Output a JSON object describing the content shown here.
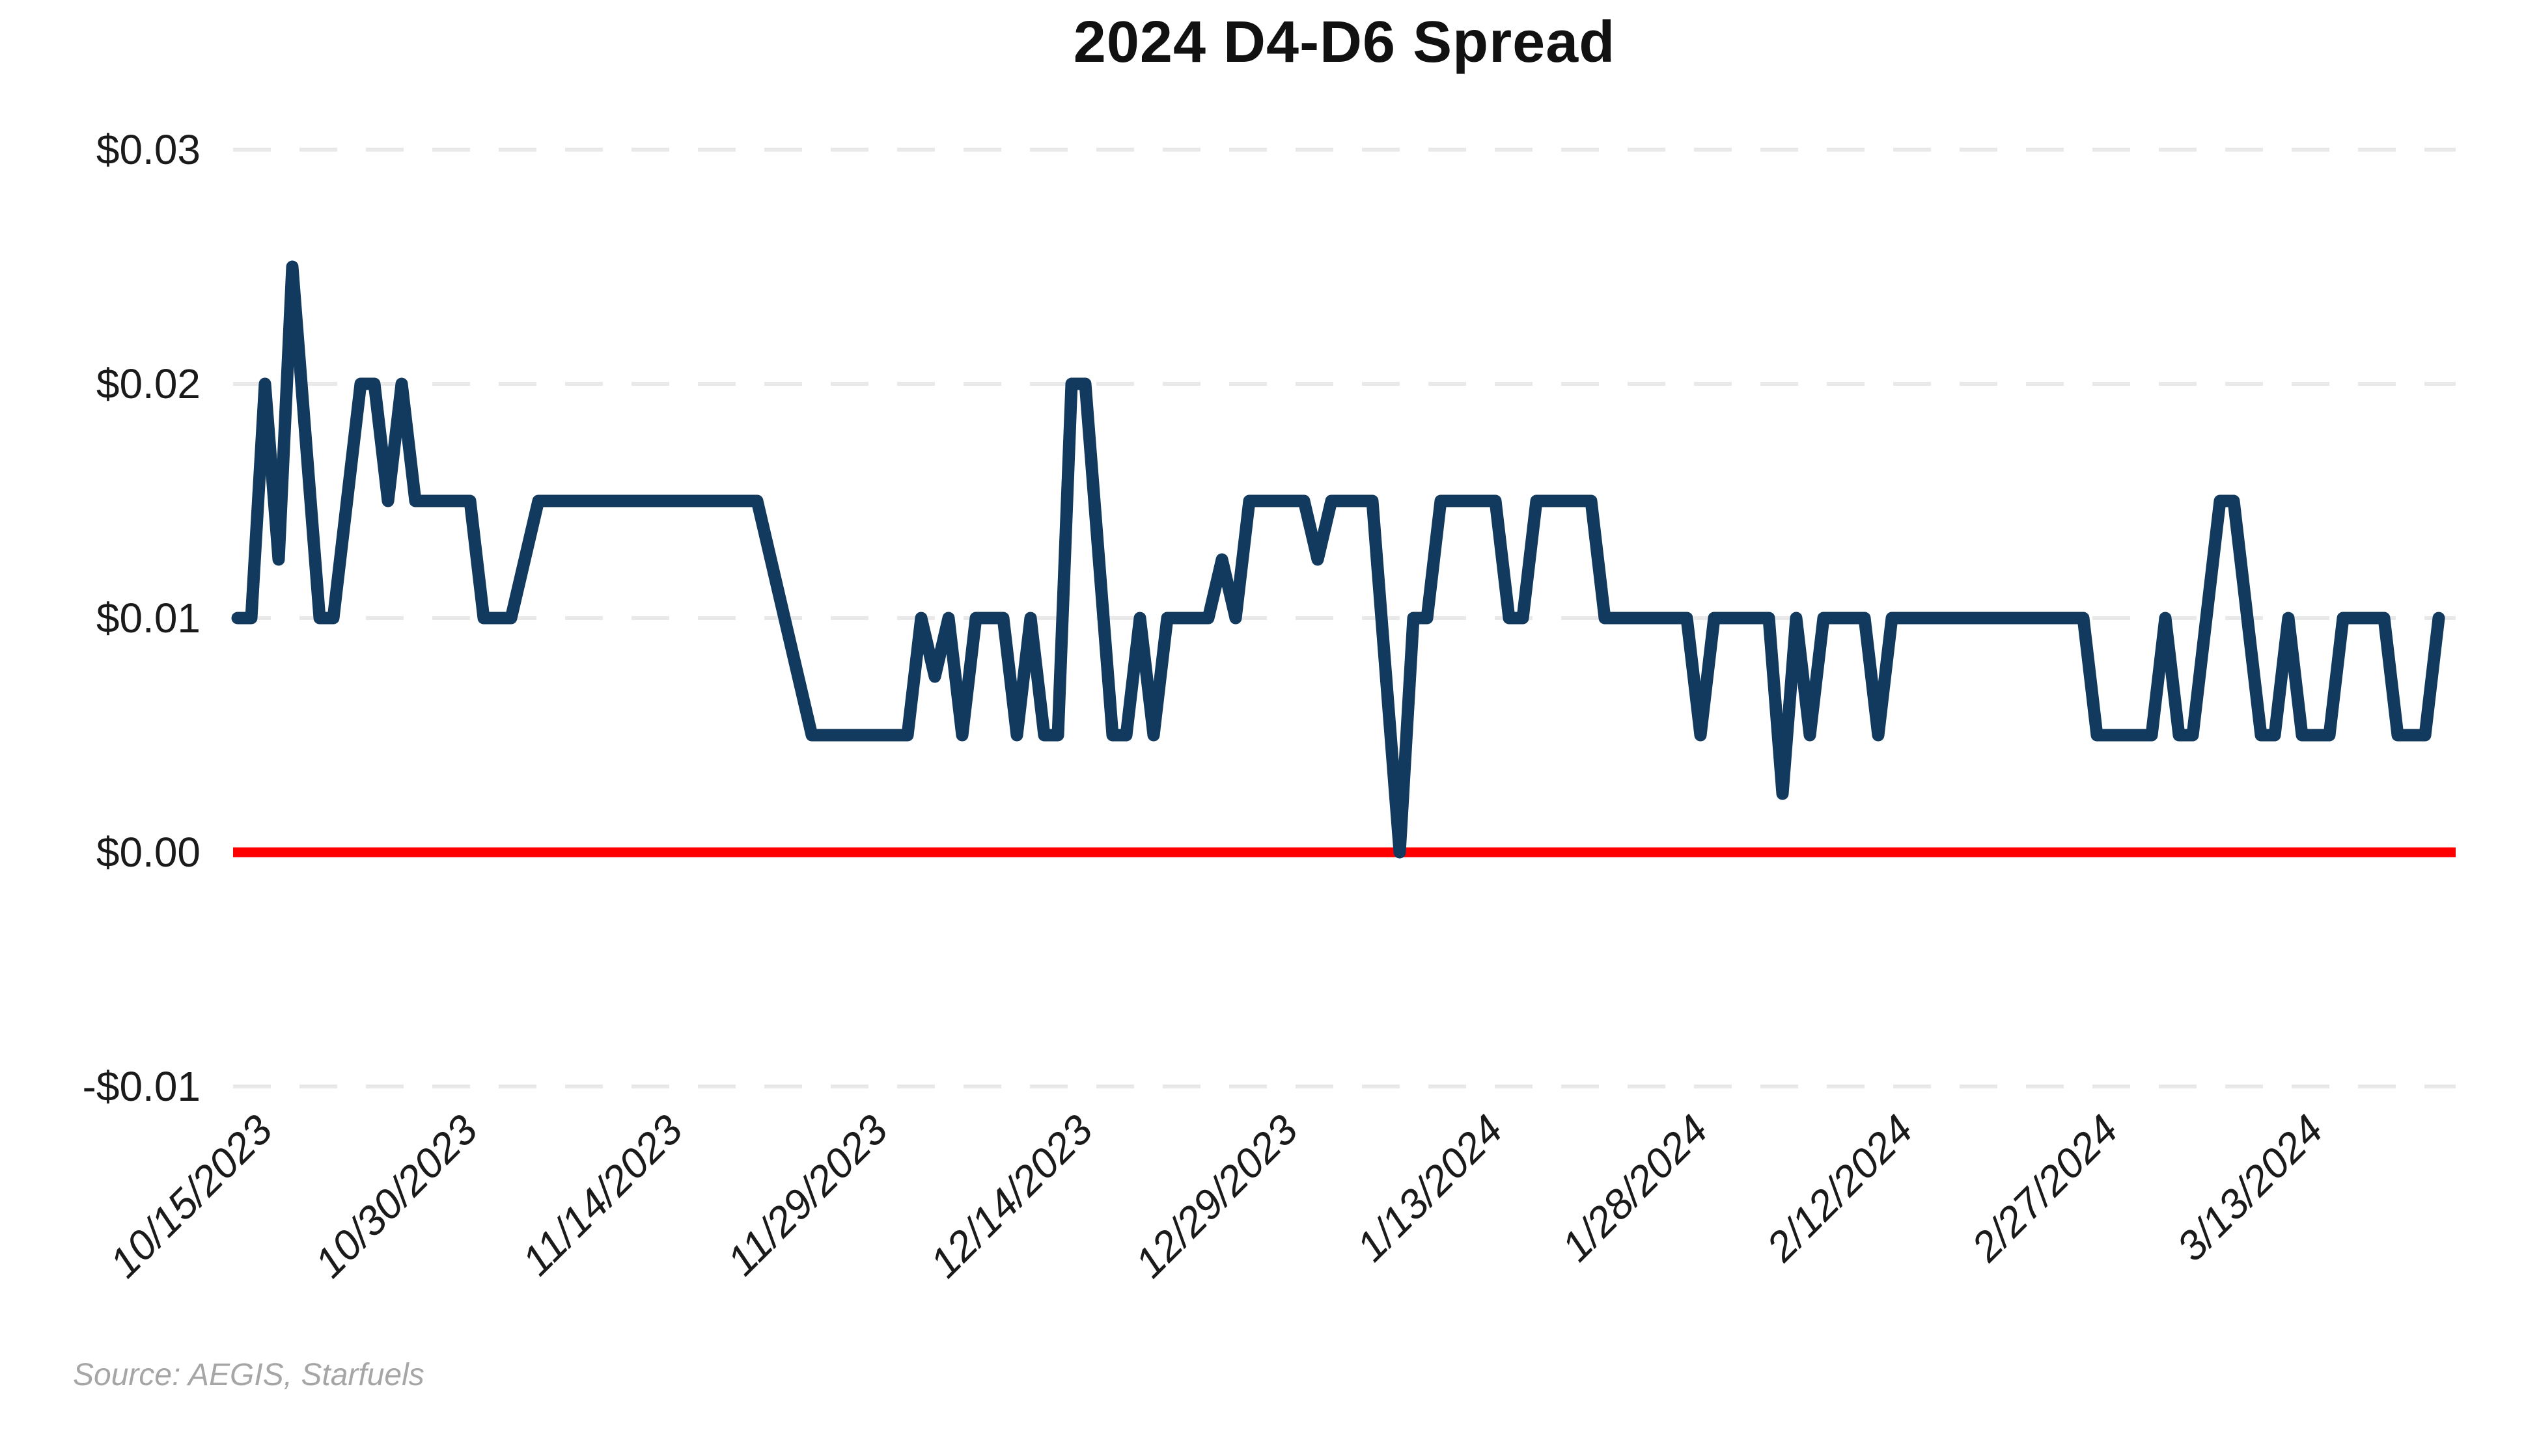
{
  "title": "2024 D4-D6 Spread",
  "source": "Source: AEGIS, Starfuels",
  "chart_data": {
    "type": "line",
    "title": "2024 D4-D6 Spread",
    "xlabel": "",
    "ylabel": "",
    "legend": "none",
    "grid": "horizontal dashed gridlines at each y tick; solid red emphasis line at $0.00",
    "ylim": [
      -0.013,
      0.032
    ],
    "x_range_days": [
      0,
      161
    ],
    "x_start_date": "10/15/2023",
    "x_tick_labels": [
      "10/15/2023",
      "10/30/2023",
      "11/14/2023",
      "11/29/2023",
      "12/14/2023",
      "12/29/2023",
      "1/13/2024",
      "1/28/2024",
      "2/12/2024",
      "2/27/2024",
      "3/13/2024"
    ],
    "x_tick_days": [
      0,
      15,
      30,
      45,
      60,
      75,
      90,
      105,
      120,
      135,
      150
    ],
    "y_ticks": [
      {
        "label": "$0.03",
        "value": 0.03
      },
      {
        "label": "$0.02",
        "value": 0.02
      },
      {
        "label": "$0.01",
        "value": 0.01
      },
      {
        "label": "$0.00",
        "value": 0.0
      },
      {
        "label": "-$0.01",
        "value": -0.01
      }
    ],
    "zero_line_value": 0.0,
    "series_name": "D4-D6 spread",
    "values": [
      0.01,
      0.01,
      0.02,
      0.0125,
      0.025,
      0.0175,
      0.01,
      0.01,
      0.015,
      0.02,
      0.02,
      0.015,
      0.02,
      0.015,
      0.015,
      0.015,
      0.015,
      0.015,
      0.01,
      0.01,
      0.01,
      0.0125,
      0.015,
      0.015,
      0.015,
      0.015,
      0.015,
      0.015,
      0.015,
      0.015,
      0.015,
      0.015,
      0.015,
      0.015,
      0.015,
      0.015,
      0.015,
      0.015,
      0.015,
      0.0125,
      0.01,
      0.0075,
      0.005,
      0.005,
      0.005,
      0.005,
      0.005,
      0.005,
      0.005,
      0.005,
      0.01,
      0.0075,
      0.01,
      0.005,
      0.01,
      0.01,
      0.01,
      0.005,
      0.01,
      0.005,
      0.005,
      0.02,
      0.02,
      0.0125,
      0.005,
      0.005,
      0.01,
      0.005,
      0.01,
      0.01,
      0.01,
      0.01,
      0.0125,
      0.01,
      0.015,
      0.015,
      0.015,
      0.015,
      0.015,
      0.0125,
      0.015,
      0.015,
      0.015,
      0.015,
      0.0075,
      0.0,
      0.01,
      0.01,
      0.015,
      0.015,
      0.015,
      0.015,
      0.015,
      0.01,
      0.01,
      0.015,
      0.015,
      0.015,
      0.015,
      0.015,
      0.01,
      0.01,
      0.01,
      0.01,
      0.01,
      0.01,
      0.01,
      0.005,
      0.01,
      0.01,
      0.01,
      0.01,
      0.01,
      0.0025,
      0.01,
      0.005,
      0.01,
      0.01,
      0.01,
      0.01,
      0.005,
      0.01,
      0.01,
      0.01,
      0.01,
      0.01,
      0.01,
      0.01,
      0.01,
      0.01,
      0.01,
      0.01,
      0.01,
      0.01,
      0.01,
      0.01,
      0.005,
      0.005,
      0.005,
      0.005,
      0.005,
      0.01,
      0.005,
      0.005,
      0.01,
      0.015,
      0.015,
      0.01,
      0.005,
      0.005,
      0.01,
      0.005,
      0.005,
      0.005,
      0.01,
      0.01,
      0.01,
      0.01,
      0.005,
      0.005,
      0.005,
      0.01
    ],
    "colors": {
      "line": "#12395e",
      "zero_line": "#ff0000",
      "gridline": "#e9e9e9",
      "axis_text": "#1a1a1a",
      "title_text": "#111111",
      "source_text": "#a6a6a6",
      "background": "#ffffff"
    }
  }
}
